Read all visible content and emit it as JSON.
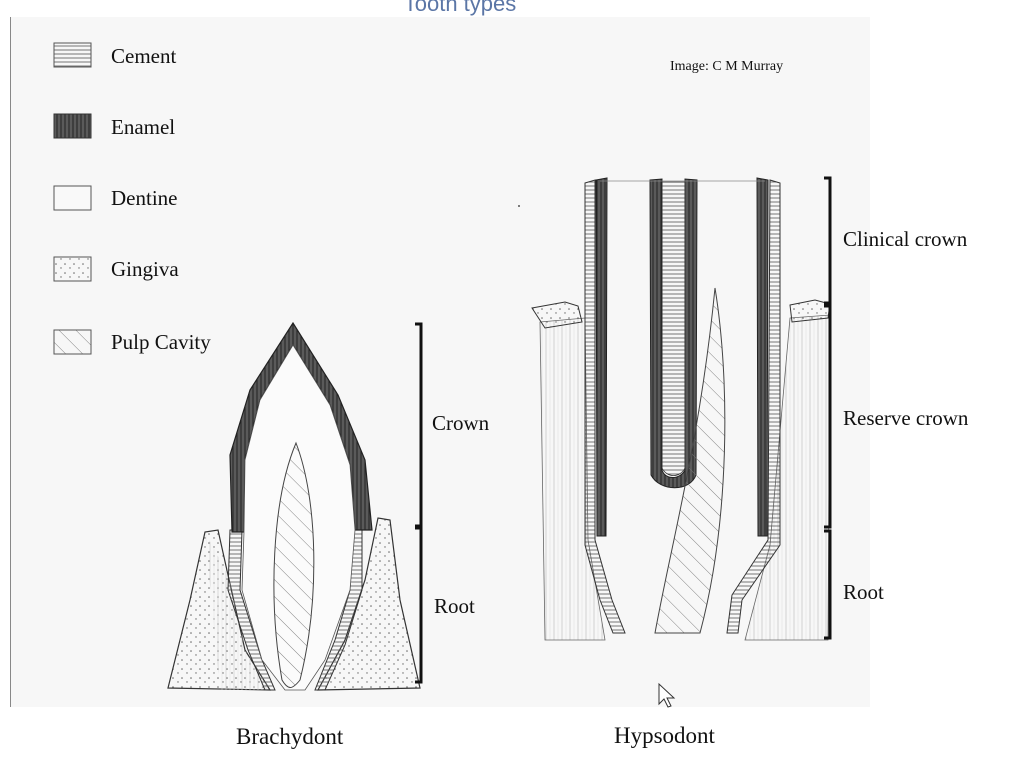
{
  "title": "Tooth types",
  "credit": "Image: C M Murray",
  "legend": [
    {
      "key": "cement",
      "label": "Cement"
    },
    {
      "key": "enamel",
      "label": "Enamel"
    },
    {
      "key": "dentine",
      "label": "Dentine"
    },
    {
      "key": "gingiva",
      "label": "Gingiva"
    },
    {
      "key": "pulp",
      "label": "Pulp Cavity"
    }
  ],
  "brachydont": {
    "caption": "Brachydont",
    "labels": {
      "crown": "Crown",
      "root": "Root"
    }
  },
  "hypsodont": {
    "caption": "Hypsodont",
    "labels": {
      "clinical_crown": "Clinical crown",
      "reserve_crown": "Reserve crown",
      "root": "Root"
    }
  },
  "colors": {
    "title": "#5b76a6",
    "ink": "#222222",
    "enamel": "#444444",
    "background": "#f7f7f7"
  }
}
